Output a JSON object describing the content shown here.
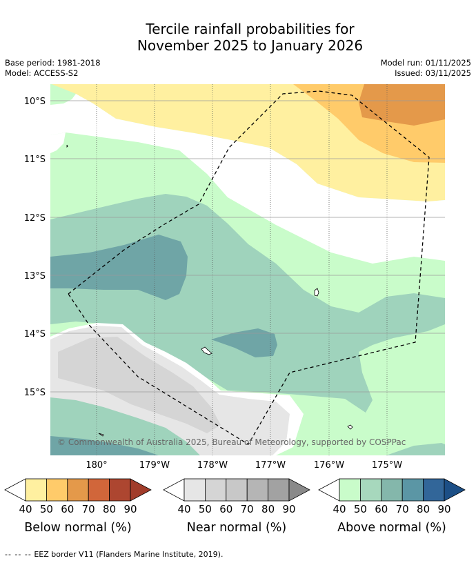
{
  "title": {
    "line1": "Tercile rainfall probabilities for",
    "line2": "November 2025 to January 2026"
  },
  "meta": {
    "base_period": "Base period: 1981-2018",
    "model": "Model: ACCESS-S2",
    "model_run": "Model run: 01/11/2025",
    "issued": "Issued: 03/11/2025"
  },
  "map": {
    "lat_labels": [
      "10°S",
      "11°S",
      "12°S",
      "13°S",
      "14°S",
      "15°S"
    ],
    "lon_labels": [
      "180°",
      "179°W",
      "178°W",
      "177°W",
      "176°W",
      "175°W"
    ],
    "copyright": "© Commonwealth of Australia 2025, Bureau of Meteorology, supported by COSPPac",
    "colors": {
      "below_40": "#fff0a0",
      "below_50": "#ffcb6a",
      "below_60": "#e4994a",
      "near_40": "#e6e6e6",
      "near_50": "#d5d5d5",
      "above_40": "#c9fcca",
      "above_50": "#9fd3bc",
      "above_60": "#6fa5a6",
      "land": "#ffffff",
      "eez": "#000000"
    }
  },
  "legends": [
    {
      "label": "Below normal (%)",
      "ticks": [
        "40",
        "50",
        "60",
        "70",
        "80",
        "90"
      ],
      "colors": [
        "#ffffff",
        "#fff0a0",
        "#ffcb6a",
        "#e4994a",
        "#d1663a",
        "#ad4630",
        "#a13c2a"
      ]
    },
    {
      "label": "Near normal (%)",
      "ticks": [
        "40",
        "50",
        "60",
        "70",
        "80",
        "90"
      ],
      "colors": [
        "#ffffff",
        "#e6e6e6",
        "#d5d5d5",
        "#c8c8c8",
        "#b5b5b5",
        "#a2a2a2",
        "#898989"
      ]
    },
    {
      "label": "Above normal (%)",
      "ticks": [
        "40",
        "50",
        "60",
        "70",
        "80",
        "90"
      ],
      "colors": [
        "#ffffff",
        "#c9fcca",
        "#a7d8bd",
        "#84b7ab",
        "#5b96a5",
        "#326699",
        "#1c4f86"
      ]
    }
  ],
  "footnote": {
    "dashes": "--  --  --",
    "text": "EEZ border V11 (Flanders Marine Institute, 2019)."
  }
}
